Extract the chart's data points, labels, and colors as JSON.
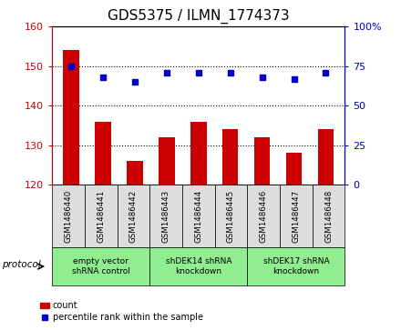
{
  "title": "GDS5375 / ILMN_1774373",
  "samples": [
    "GSM1486440",
    "GSM1486441",
    "GSM1486442",
    "GSM1486443",
    "GSM1486444",
    "GSM1486445",
    "GSM1486446",
    "GSM1486447",
    "GSM1486448"
  ],
  "counts": [
    154,
    136,
    126,
    132,
    136,
    134,
    132,
    128,
    134
  ],
  "percentiles": [
    75,
    68,
    65,
    71,
    71,
    71,
    68,
    67,
    71
  ],
  "ylim_left": [
    120,
    160
  ],
  "ylim_right": [
    0,
    100
  ],
  "yticks_left": [
    120,
    130,
    140,
    150,
    160
  ],
  "yticks_right": [
    0,
    25,
    50,
    75,
    100
  ],
  "groups": [
    {
      "label": "empty vector\nshRNA control",
      "indices": [
        0,
        1,
        2
      ],
      "color": "#90EE90"
    },
    {
      "label": "shDEK14 shRNA\nknockdown",
      "indices": [
        3,
        4,
        5
      ],
      "color": "#90EE90"
    },
    {
      "label": "shDEK17 shRNA\nknockdown",
      "indices": [
        6,
        7,
        8
      ],
      "color": "#90EE90"
    }
  ],
  "bar_color": "#CC0000",
  "scatter_color": "#0000CC",
  "bar_width": 0.5,
  "title_fontsize": 11,
  "tick_fontsize": 8,
  "protocol_label": "protocol",
  "legend_count_label": "count",
  "legend_percentile_label": "percentile rank within the sample"
}
